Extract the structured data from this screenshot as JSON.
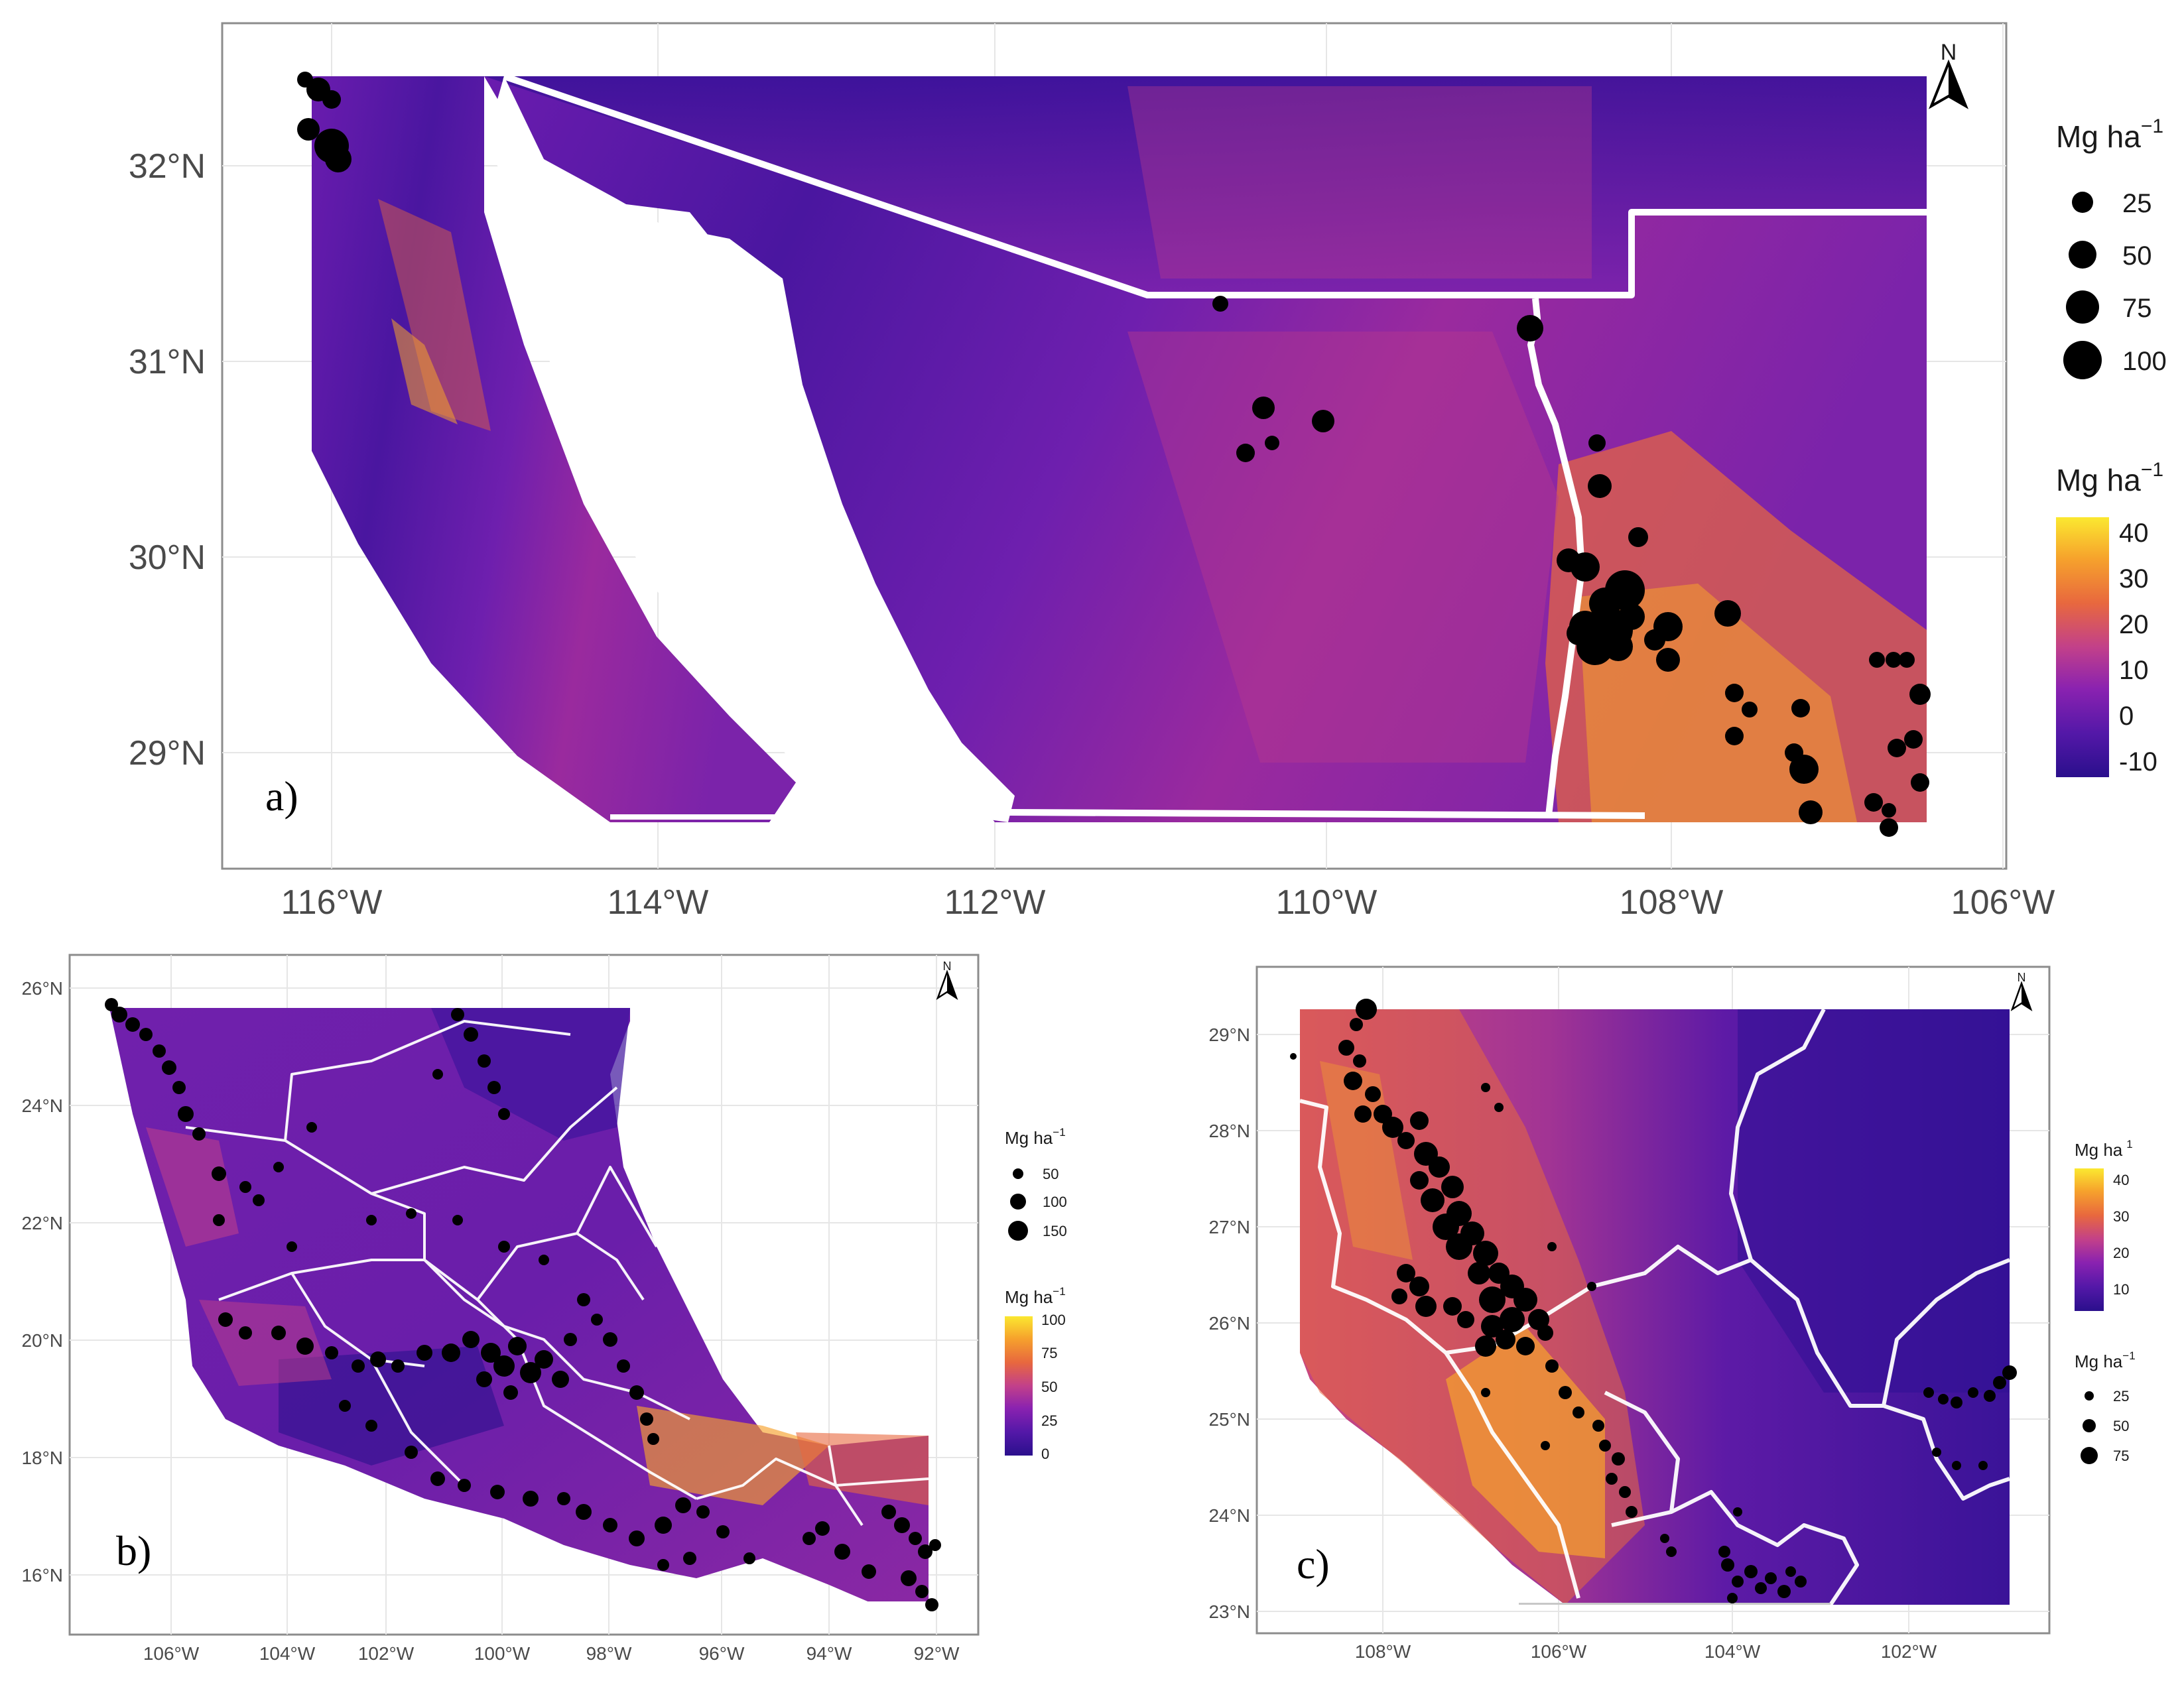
{
  "panels": [
    {
      "id": "a",
      "letter": "a)",
      "lat_ticks": [
        "32°N",
        "31°N",
        "30°N",
        "29°N"
      ],
      "lon_ticks": [
        "116°W",
        "114°W",
        "112°W",
        "110°W",
        "108°W",
        "106°W"
      ],
      "north_label": "N",
      "size_legend": {
        "title": "Mg ha",
        "title_sup": "−1",
        "values": [
          "25",
          "50",
          "75",
          "100"
        ]
      },
      "color_legend": {
        "title": "Mg ha",
        "title_sup": "−1",
        "ticks": [
          "40",
          "30",
          "20",
          "10",
          "0",
          "-10"
        ]
      }
    },
    {
      "id": "b",
      "letter": "b)",
      "lat_ticks": [
        "26°N",
        "24°N",
        "22°N",
        "20°N",
        "18°N",
        "16°N"
      ],
      "lon_ticks": [
        "106°W",
        "104°W",
        "102°W",
        "100°W",
        "98°W",
        "96°W",
        "94°W",
        "92°W"
      ],
      "north_label": "N",
      "size_legend": {
        "title": "Mg ha",
        "title_sup": "−1",
        "values": [
          "50",
          "100",
          "150"
        ]
      },
      "color_legend": {
        "title": "Mg ha",
        "title_sup": "−1",
        "ticks": [
          "100",
          "75",
          "50",
          "25",
          "0"
        ]
      }
    },
    {
      "id": "c",
      "letter": "c)",
      "lat_ticks": [
        "29°N",
        "28°N",
        "27°N",
        "26°N",
        "25°N",
        "24°N",
        "23°N"
      ],
      "lon_ticks": [
        "108°W",
        "106°W",
        "104°W",
        "102°W"
      ],
      "north_label": "N",
      "color_legend": {
        "title": "Mg ha",
        "title_sup": "1",
        "ticks": [
          "40",
          "30",
          "20",
          "10"
        ]
      },
      "size_legend": {
        "title": "Mg ha",
        "title_sup": "−1",
        "values": [
          "25",
          "50",
          "75"
        ]
      }
    }
  ],
  "colors": {
    "ramp": [
      "#2a0f8c",
      "#5418a8",
      "#8a22b0",
      "#c2408a",
      "#e8683e",
      "#f6a22c",
      "#fbe830"
    ],
    "boundary": "#ffffff",
    "points": "#000000",
    "frame": "#8c8c8c",
    "grid": "#e6e6e6"
  }
}
